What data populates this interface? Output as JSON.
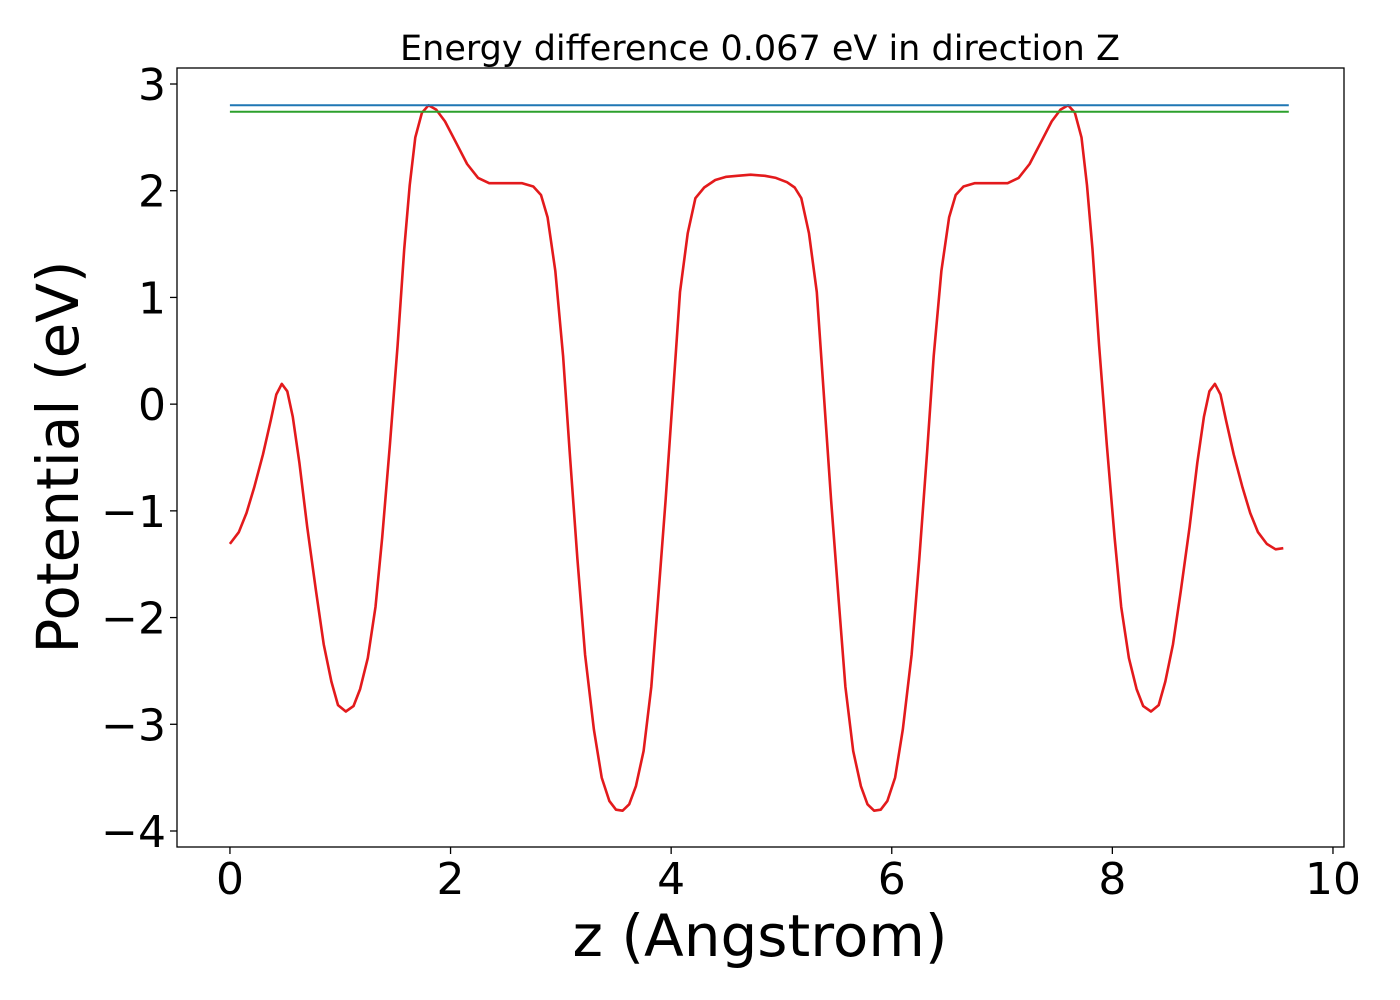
{
  "chart_data": {
    "type": "line",
    "title": "Energy difference 0.067 eV in direction Z",
    "xlabel": "z (Angstrom)",
    "ylabel": "Potential (eV)",
    "xlim": [
      -0.48,
      10.1
    ],
    "ylim": [
      -4.15,
      3.15
    ],
    "xticks": [
      0,
      2,
      4,
      6,
      8,
      10
    ],
    "yticks": [
      3,
      2,
      1,
      0,
      -1,
      -2,
      -3,
      -4
    ],
    "grid": false,
    "legend": "none",
    "series": [
      {
        "color": "#e31a1c",
        "points": [
          [
            0.0,
            -1.31
          ],
          [
            0.08,
            -1.2
          ],
          [
            0.15,
            -1.02
          ],
          [
            0.22,
            -0.78
          ],
          [
            0.3,
            -0.47
          ],
          [
            0.37,
            -0.15
          ],
          [
            0.42,
            0.09
          ],
          [
            0.47,
            0.19
          ],
          [
            0.52,
            0.12
          ],
          [
            0.57,
            -0.12
          ],
          [
            0.63,
            -0.55
          ],
          [
            0.7,
            -1.15
          ],
          [
            0.78,
            -1.75
          ],
          [
            0.85,
            -2.25
          ],
          [
            0.92,
            -2.6
          ],
          [
            0.98,
            -2.82
          ],
          [
            1.05,
            -2.88
          ],
          [
            1.12,
            -2.83
          ],
          [
            1.18,
            -2.67
          ],
          [
            1.25,
            -2.38
          ],
          [
            1.32,
            -1.9
          ],
          [
            1.38,
            -1.25
          ],
          [
            1.45,
            -0.38
          ],
          [
            1.52,
            0.55
          ],
          [
            1.58,
            1.45
          ],
          [
            1.63,
            2.05
          ],
          [
            1.68,
            2.5
          ],
          [
            1.74,
            2.73
          ],
          [
            1.8,
            2.8
          ],
          [
            1.87,
            2.76
          ],
          [
            1.95,
            2.65
          ],
          [
            2.05,
            2.45
          ],
          [
            2.15,
            2.25
          ],
          [
            2.25,
            2.12
          ],
          [
            2.35,
            2.07
          ],
          [
            2.45,
            2.07
          ],
          [
            2.55,
            2.07
          ],
          [
            2.65,
            2.07
          ],
          [
            2.75,
            2.04
          ],
          [
            2.82,
            1.96
          ],
          [
            2.88,
            1.75
          ],
          [
            2.95,
            1.25
          ],
          [
            3.02,
            0.45
          ],
          [
            3.08,
            -0.45
          ],
          [
            3.15,
            -1.45
          ],
          [
            3.22,
            -2.35
          ],
          [
            3.3,
            -3.05
          ],
          [
            3.37,
            -3.5
          ],
          [
            3.44,
            -3.72
          ],
          [
            3.5,
            -3.8
          ],
          [
            3.56,
            -3.81
          ],
          [
            3.62,
            -3.75
          ],
          [
            3.68,
            -3.58
          ],
          [
            3.75,
            -3.25
          ],
          [
            3.82,
            -2.65
          ],
          [
            3.88,
            -1.85
          ],
          [
            3.95,
            -0.9
          ],
          [
            4.02,
            0.15
          ],
          [
            4.08,
            1.05
          ],
          [
            4.15,
            1.6
          ],
          [
            4.22,
            1.93
          ],
          [
            4.3,
            2.03
          ],
          [
            4.4,
            2.1
          ],
          [
            4.5,
            2.13
          ],
          [
            4.6,
            2.14
          ],
          [
            4.72,
            2.15
          ],
          [
            4.85,
            2.14
          ],
          [
            4.95,
            2.12
          ],
          [
            5.05,
            2.08
          ],
          [
            5.12,
            2.03
          ],
          [
            5.18,
            1.93
          ],
          [
            5.25,
            1.6
          ],
          [
            5.32,
            1.05
          ],
          [
            5.38,
            0.15
          ],
          [
            5.45,
            -0.9
          ],
          [
            5.52,
            -1.85
          ],
          [
            5.58,
            -2.65
          ],
          [
            5.65,
            -3.25
          ],
          [
            5.72,
            -3.58
          ],
          [
            5.78,
            -3.75
          ],
          [
            5.84,
            -3.81
          ],
          [
            5.9,
            -3.8
          ],
          [
            5.96,
            -3.72
          ],
          [
            6.03,
            -3.5
          ],
          [
            6.1,
            -3.05
          ],
          [
            6.18,
            -2.35
          ],
          [
            6.25,
            -1.45
          ],
          [
            6.32,
            -0.45
          ],
          [
            6.38,
            0.45
          ],
          [
            6.45,
            1.25
          ],
          [
            6.52,
            1.75
          ],
          [
            6.58,
            1.96
          ],
          [
            6.65,
            2.04
          ],
          [
            6.75,
            2.07
          ],
          [
            6.85,
            2.07
          ],
          [
            6.95,
            2.07
          ],
          [
            7.05,
            2.07
          ],
          [
            7.15,
            2.12
          ],
          [
            7.25,
            2.25
          ],
          [
            7.35,
            2.45
          ],
          [
            7.45,
            2.65
          ],
          [
            7.53,
            2.76
          ],
          [
            7.6,
            2.8
          ],
          [
            7.66,
            2.73
          ],
          [
            7.72,
            2.5
          ],
          [
            7.77,
            2.05
          ],
          [
            7.82,
            1.45
          ],
          [
            7.88,
            0.55
          ],
          [
            7.95,
            -0.38
          ],
          [
            8.02,
            -1.25
          ],
          [
            8.08,
            -1.9
          ],
          [
            8.15,
            -2.38
          ],
          [
            8.22,
            -2.67
          ],
          [
            8.28,
            -2.83
          ],
          [
            8.35,
            -2.88
          ],
          [
            8.42,
            -2.82
          ],
          [
            8.48,
            -2.6
          ],
          [
            8.55,
            -2.25
          ],
          [
            8.62,
            -1.75
          ],
          [
            8.7,
            -1.15
          ],
          [
            8.77,
            -0.55
          ],
          [
            8.83,
            -0.12
          ],
          [
            8.88,
            0.12
          ],
          [
            8.93,
            0.19
          ],
          [
            8.98,
            0.09
          ],
          [
            9.03,
            -0.15
          ],
          [
            9.1,
            -0.47
          ],
          [
            9.18,
            -0.78
          ],
          [
            9.25,
            -1.02
          ],
          [
            9.32,
            -1.2
          ],
          [
            9.4,
            -1.31
          ],
          [
            9.48,
            -1.36
          ],
          [
            9.55,
            -1.35
          ]
        ]
      },
      {
        "color": "#1f77b4",
        "points": [
          [
            0.0,
            2.8
          ],
          [
            9.6,
            2.8
          ]
        ]
      },
      {
        "color": "#2ca02c",
        "points": [
          [
            0.0,
            2.74
          ],
          [
            9.6,
            2.74
          ]
        ]
      }
    ]
  }
}
